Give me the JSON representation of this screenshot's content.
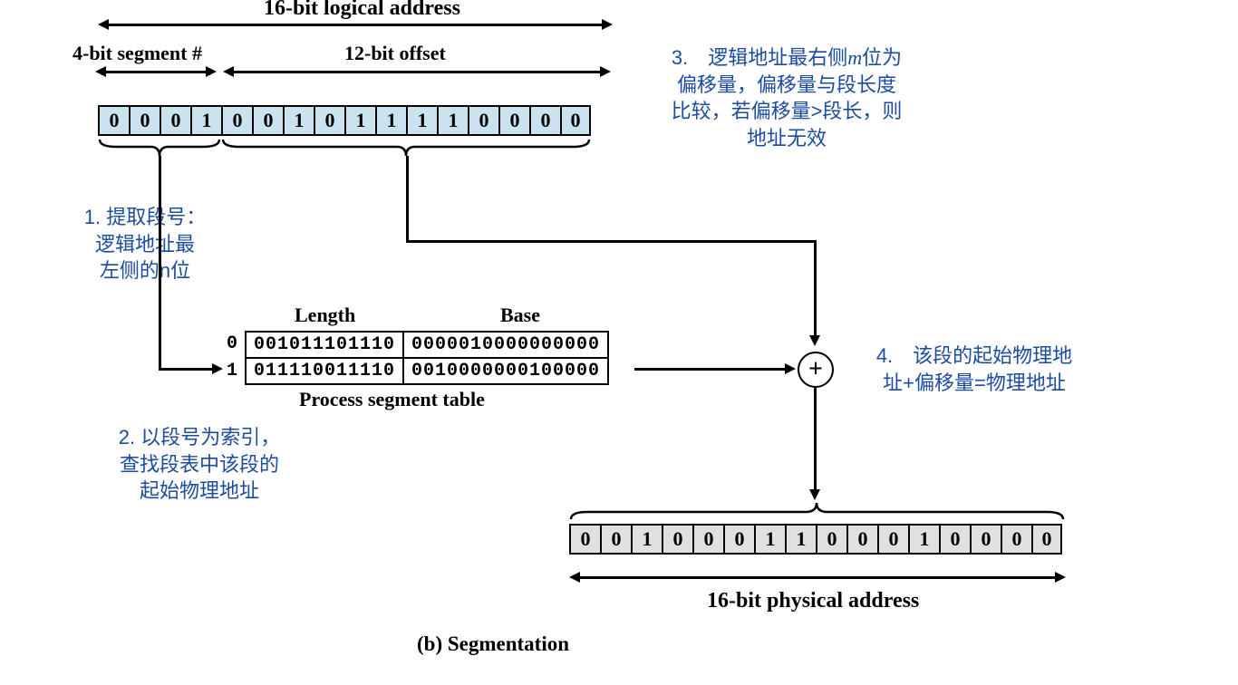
{
  "diagram": {
    "type": "infographic",
    "background_color": "#ffffff",
    "logical_cell_color": "#c9e4f0",
    "physical_cell_color": "#e0e0e0",
    "border_color": "#000000",
    "text_color": "#000000",
    "annotation_color": "#1c4ca0",
    "title_fontsize": 24,
    "cell_fontsize": 22,
    "annot_fontsize": 22,
    "mono_font": "Courier New"
  },
  "labels": {
    "top_title": "16-bit logical address",
    "seg_label": "4-bit segment #",
    "offset_label": "12-bit offset",
    "length_header": "Length",
    "base_header": "Base",
    "table_caption": "Process segment table",
    "phys_title": "16-bit physical address",
    "figure_caption": "(b) Segmentation"
  },
  "logical_bits": [
    "0",
    "0",
    "0",
    "1",
    "0",
    "0",
    "1",
    "0",
    "1",
    "1",
    "1",
    "1",
    "0",
    "0",
    "0",
    "0"
  ],
  "physical_bits": [
    "0",
    "0",
    "1",
    "0",
    "0",
    "0",
    "1",
    "1",
    "0",
    "0",
    "0",
    "1",
    "0",
    "0",
    "0",
    "0"
  ],
  "seg_table": {
    "row_labels": [
      "0",
      "1"
    ],
    "rows": [
      {
        "length": "001011101110",
        "base": "0000010000000000"
      },
      {
        "length": "011110011110",
        "base": "0010000000100000"
      }
    ]
  },
  "annotations": {
    "a1_line1": "1. 提取段号：",
    "a1_line2": "逻辑地址最",
    "a1_line3": "左侧的n位",
    "a2_line1": "2. 以段号为索引，",
    "a2_line2": "查找段表中该段的",
    "a2_line3": "起始物理地址",
    "a3_prefix": "3.　逻辑地址最右侧",
    "a3_m": "m",
    "a3_suffix": "位为",
    "a3_line2": "偏移量，偏移量与段长度",
    "a3_line3": "比较，若偏移量>段长，则",
    "a3_line4": "地址无效",
    "a4_line1": "4.　该段的起始物理地",
    "a4_line2": "址+偏移量=物理地址"
  },
  "adder_symbol": "+"
}
